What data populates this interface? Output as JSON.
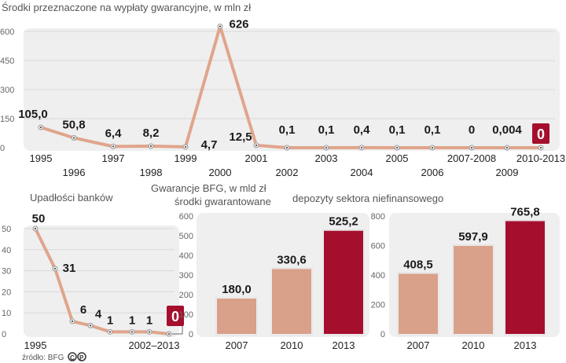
{
  "colors": {
    "line": "#e0a58c",
    "bar": "#d9a08a",
    "highlight": "#a50f2d",
    "panel": "#efefef",
    "grid": "#d8d8d8"
  },
  "source": "źródło: BFG",
  "logo_marks": "©℗",
  "chart_data": [
    {
      "type": "line",
      "title": "Środki przeznaczone na wypłaty gwarancyjne, w mln zł",
      "categories": [
        "1995",
        "1996",
        "1997",
        "1998",
        "1999",
        "2000",
        "2001",
        "2002",
        "2003",
        "2004",
        "2005",
        "2006",
        "2007-2008",
        "2009",
        "2010-2013"
      ],
      "values": [
        105.0,
        50.8,
        6.4,
        8.2,
        4.7,
        626,
        12.5,
        0.1,
        0.1,
        0.4,
        0.1,
        0.1,
        0,
        0.004,
        0
      ],
      "labels": [
        "105,0",
        "50,8",
        "6,4",
        "8,2",
        "4,7",
        "626",
        "12,5",
        "0,1",
        "0,1",
        "0,4",
        "0,1",
        "0,1",
        "0",
        "0,004",
        "0"
      ],
      "yticks": [
        0,
        150,
        300,
        450,
        600
      ],
      "ylim": [
        0,
        600
      ],
      "grid": true,
      "highlight_last": true
    },
    {
      "type": "line",
      "title": "Upadłości banków",
      "values": [
        50,
        31,
        6,
        4,
        1,
        1,
        1,
        0
      ],
      "labels": [
        "50",
        "31",
        "6",
        "4",
        "1",
        "1",
        "1",
        "0"
      ],
      "xlabels": [
        "1995",
        "2002–2013"
      ],
      "yticks": [
        0,
        10,
        20,
        30,
        40,
        50
      ],
      "ylim": [
        0,
        50
      ],
      "grid": true,
      "highlight_last": true
    },
    {
      "type": "bar",
      "title": "Gwarancje BFG, w mld zł",
      "subtitle": "środki gwarantowane",
      "categories": [
        "2007",
        "2010",
        "2013"
      ],
      "values": [
        180.0,
        330.6,
        525.2
      ],
      "labels": [
        "180,0",
        "330,6",
        "525,2"
      ],
      "yticks": [
        0,
        100,
        200,
        300,
        400,
        500,
        600
      ],
      "ylim": [
        0,
        600
      ],
      "grid": false
    },
    {
      "type": "bar",
      "title": "depozyty sektora niefinansowego",
      "categories": [
        "2007",
        "2010",
        "2013"
      ],
      "values": [
        408.5,
        597.9,
        765.8
      ],
      "labels": [
        "408,5",
        "597,9",
        "765,8"
      ],
      "yticks": [
        0,
        200,
        400,
        600,
        800
      ],
      "ylim": [
        0,
        800
      ],
      "grid": false
    }
  ]
}
